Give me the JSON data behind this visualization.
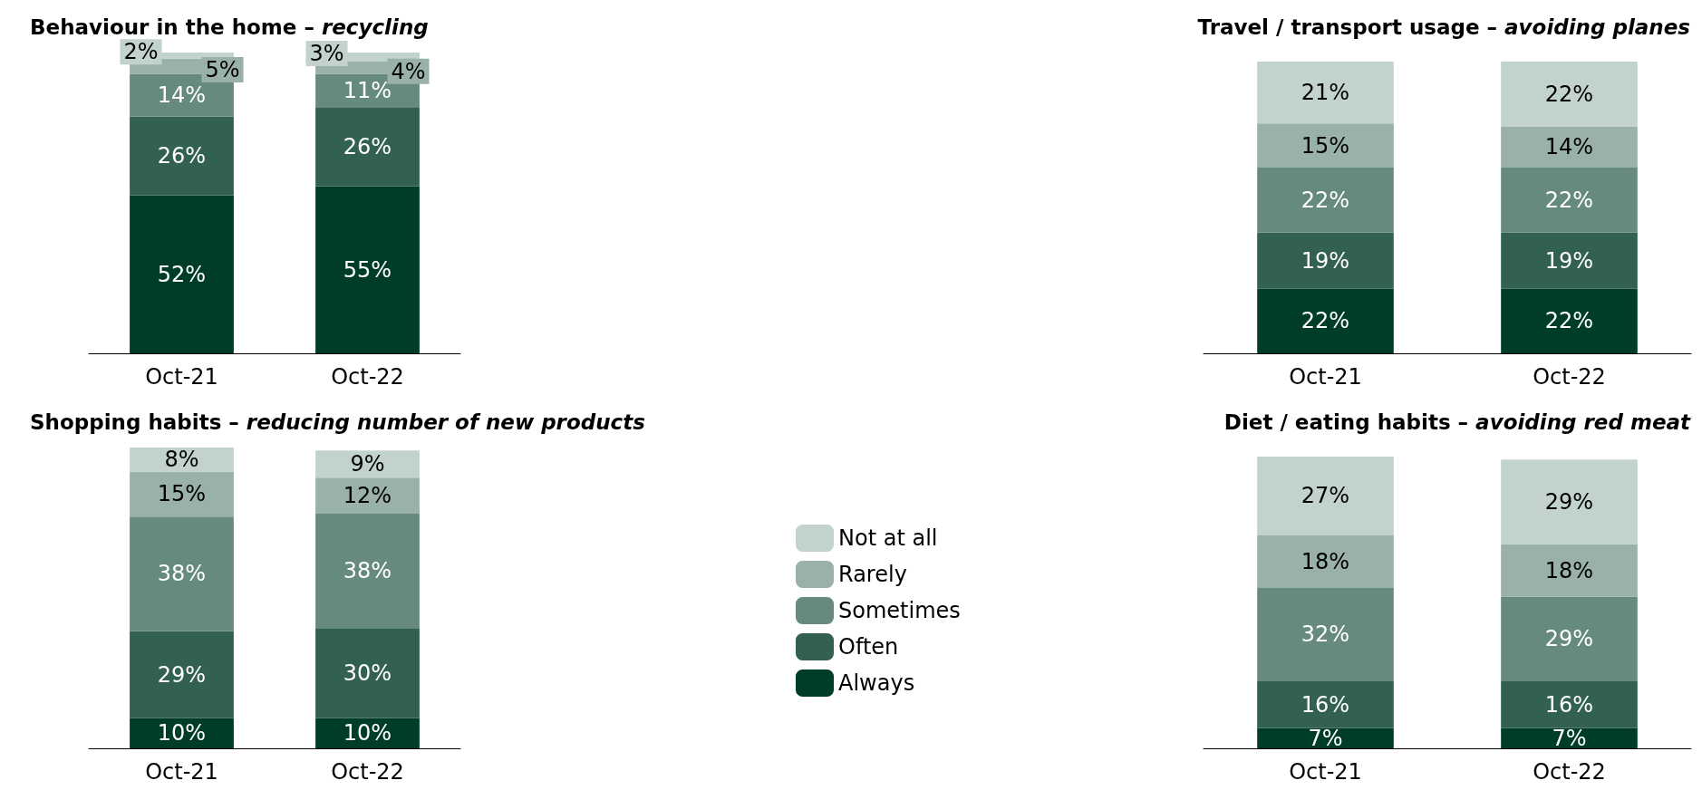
{
  "chart_data": [
    {
      "type": "bar",
      "title": "Behaviour in the home – ",
      "subtitle": "recycling",
      "categories": [
        "Oct-21",
        "Oct-22"
      ],
      "stacked": true,
      "legend": false,
      "grid": false,
      "series": [
        {
          "color": "#003d26",
          "values": [
            52,
            55
          ],
          "value_labels": [
            "52%",
            "55%"
          ]
        },
        {
          "color": "#336150",
          "values": [
            26,
            26
          ],
          "value_labels": [
            "26%",
            "26%"
          ]
        },
        {
          "color": "#668b7c",
          "values": [
            14,
            11
          ],
          "value_labels": [
            "14%",
            "11%"
          ]
        },
        {
          "color": "#99b1a7",
          "values": [
            5,
            4
          ],
          "value_labels": [
            "5%",
            "4%"
          ]
        },
        {
          "color": "#c2d3cc",
          "values": [
            2,
            3
          ],
          "value_labels": [
            "2%",
            "3%"
          ]
        }
      ]
    },
    {
      "type": "bar",
      "title": "Travel / transport usage – ",
      "subtitle": "avoiding planes",
      "categories": [
        "Oct-21",
        "Oct-22"
      ],
      "stacked": true,
      "legend": false,
      "grid": false,
      "series": [
        {
          "color": "#003d26",
          "values": [
            22,
            22
          ],
          "value_labels": [
            "22%",
            "22%"
          ]
        },
        {
          "color": "#336150",
          "values": [
            19,
            19
          ],
          "value_labels": [
            "19%",
            "19%"
          ]
        },
        {
          "color": "#668b7c",
          "values": [
            22,
            22
          ],
          "value_labels": [
            "22%",
            "22%"
          ]
        },
        {
          "color": "#99b1a7",
          "values": [
            15,
            14
          ],
          "value_labels": [
            "15%",
            "14%"
          ]
        },
        {
          "color": "#c2d3cc",
          "values": [
            21,
            22
          ],
          "value_labels": [
            "21%",
            "22%"
          ]
        }
      ]
    },
    {
      "type": "bar",
      "title": "Shopping habits – ",
      "subtitle": "reducing number of new products",
      "categories": [
        "Oct-21",
        "Oct-22"
      ],
      "stacked": true,
      "legend": "right",
      "grid": false,
      "series": [
        {
          "name": "Always",
          "color": "#003d26",
          "values": [
            10,
            10
          ],
          "value_labels": [
            "10%",
            "10%"
          ]
        },
        {
          "name": "Often",
          "color": "#336150",
          "values": [
            29,
            30
          ],
          "value_labels": [
            "29%",
            "30%"
          ]
        },
        {
          "name": "Sometimes",
          "color": "#668b7c",
          "values": [
            38,
            38
          ],
          "value_labels": [
            "38%",
            "38%"
          ]
        },
        {
          "name": "Rarely",
          "color": "#99b1a7",
          "values": [
            15,
            12
          ],
          "value_labels": [
            "15%",
            "12%"
          ]
        },
        {
          "name": "Not at all",
          "color": "#c2d3cc",
          "values": [
            8,
            9
          ],
          "value_labels": [
            "8%",
            "9%"
          ]
        }
      ]
    },
    {
      "type": "bar",
      "title": "Diet / eating habits – ",
      "subtitle": "avoiding red meat",
      "categories": [
        "Oct-21",
        "Oct-22"
      ],
      "stacked": true,
      "legend": false,
      "grid": false,
      "series": [
        {
          "color": "#003d26",
          "values": [
            7,
            7
          ],
          "value_labels": [
            "7%",
            "7%"
          ]
        },
        {
          "color": "#336150",
          "values": [
            16,
            16
          ],
          "value_labels": [
            "16%",
            "16%"
          ]
        },
        {
          "color": "#668b7c",
          "values": [
            32,
            29
          ],
          "value_labels": [
            "32%",
            "29%"
          ]
        },
        {
          "color": "#99b1a7",
          "values": [
            18,
            18
          ],
          "value_labels": [
            "18%",
            "18%"
          ]
        },
        {
          "color": "#c2d3cc",
          "values": [
            27,
            29
          ],
          "value_labels": [
            "27%",
            "29%"
          ]
        }
      ]
    }
  ]
}
